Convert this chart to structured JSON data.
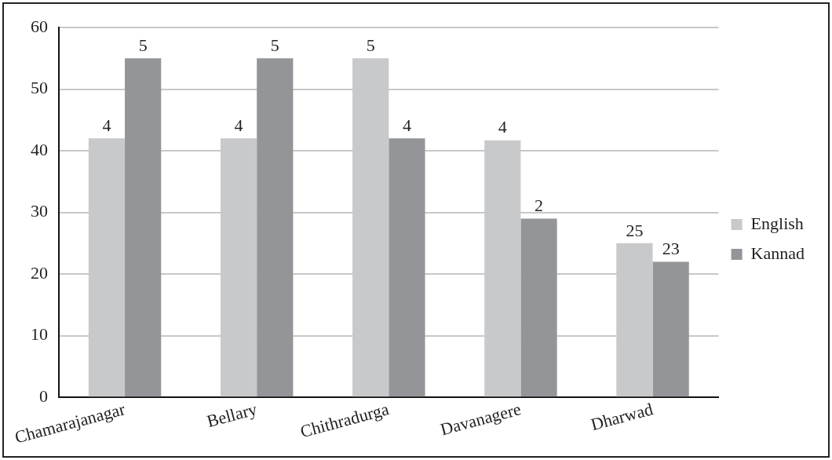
{
  "chart_data": {
    "type": "bar",
    "categories": [
      "Chamarajanagar",
      "Bellary",
      "Chithradurga",
      "Davanagere",
      "Dharwad"
    ],
    "series": [
      {
        "name": "English",
        "color": "#c8c9cb",
        "values": [
          42,
          42,
          55,
          41.7,
          25
        ]
      },
      {
        "name": "Kannad",
        "color": "#939598",
        "values": [
          55,
          55,
          42,
          29,
          22
        ]
      }
    ],
    "annotations": [
      {
        "text": "4",
        "x": "Chamarajanagar",
        "y": 42
      },
      {
        "text": "5",
        "x": "Chamarajanagar",
        "y": 55
      },
      {
        "text": "4",
        "x": "Bellary",
        "y": 42
      },
      {
        "text": "5",
        "x": "Bellary",
        "y": 55
      },
      {
        "text": "5",
        "x": "Chithradurga",
        "y": 55
      },
      {
        "text": "4",
        "x": "Chithradurga",
        "y": 42
      },
      {
        "text": "4",
        "x": "Davanagere",
        "y": 41.7
      },
      {
        "text": "2",
        "x": "Davanagere",
        "y": 29
      },
      {
        "text": "25",
        "x": "Dharwad",
        "y": 25
      },
      {
        "text": "23",
        "x": "Dharwad",
        "y": 22
      }
    ],
    "ylim": [
      0,
      60
    ],
    "yticks": [
      0,
      10,
      20,
      30,
      40,
      50,
      60
    ],
    "grid": "y",
    "legend": "right"
  }
}
